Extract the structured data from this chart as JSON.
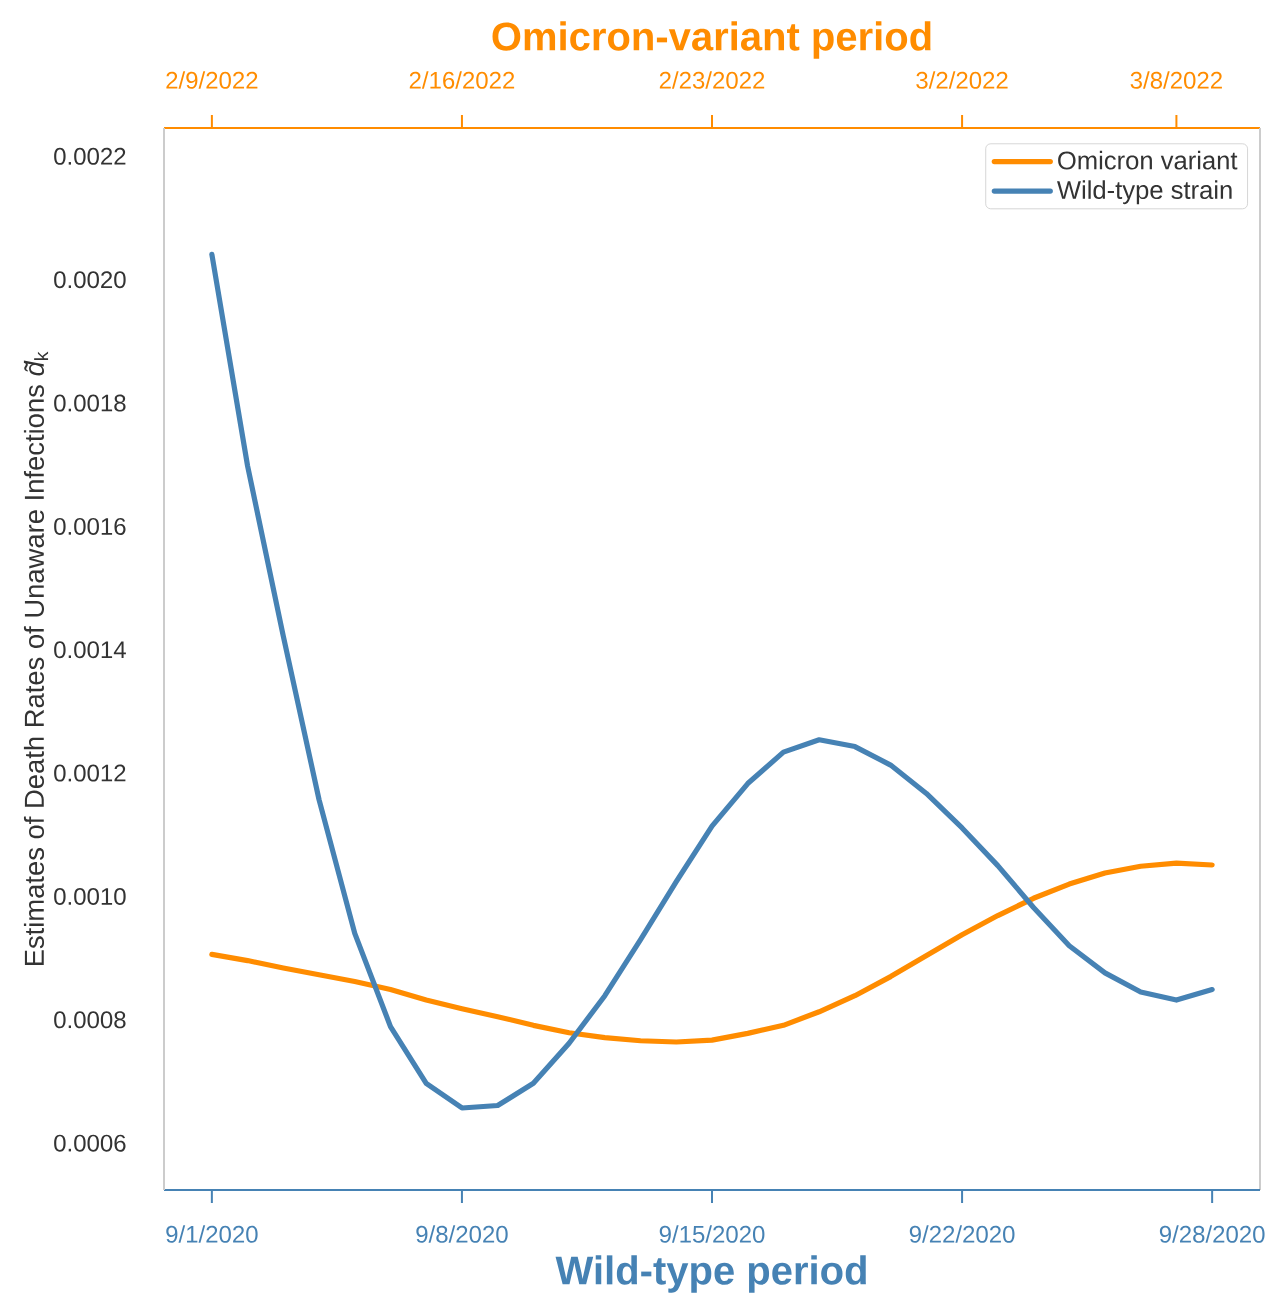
{
  "chart_data": {
    "type": "line",
    "x2label": "Omicron-variant period",
    "xlabel": "Wild-type period",
    "ylabel": "Estimates of Death Rates of Unaware Infections *d̃*$_{k}$",
    "categories": [
      "9/1/2020",
      null,
      null,
      null,
      null,
      null,
      null,
      "9/8/2020",
      null,
      null,
      null,
      null,
      null,
      null,
      "9/15/2020",
      null,
      null,
      null,
      null,
      null,
      null,
      "9/22/2020",
      null,
      null,
      null,
      null,
      null,
      null,
      "9/28/2020"
    ],
    "x2lim": [
      "2022-02-07T15:50",
      "2022-03-10T08:10"
    ],
    "x2ticks": [
      {
        "value": "2022-02-09",
        "label": "2/9/2022"
      },
      {
        "value": "2022-02-16",
        "label": "2/16/2022"
      },
      {
        "value": "2022-02-23",
        "label": "2/23/2022"
      },
      {
        "value": "2022-03-02",
        "label": "3/2/2022"
      },
      {
        "value": "2022-03-08",
        "label": "3/8/2022"
      }
    ],
    "ylim": [
      0.000524,
      0.002246
    ],
    "yticks": [
      0.0006,
      0.0008,
      {
        "value": 0.001,
        "label": "0.0010"
      },
      0.0012,
      0.0014,
      0.0016,
      0.0018,
      {
        "value": 0.002,
        "label": "0.0020"
      },
      0.0022
    ],
    "legend": "top right",
    "series": [
      {
        "name": "Omicron variant",
        "color": "#ff8c00",
        "values": [
          0.000906,
          0.000896,
          0.000884,
          0.000873,
          0.000862,
          0.000849,
          0.000832,
          0.000818,
          0.000805,
          0.000791,
          0.000779,
          0.000771,
          0.000766,
          0.000764,
          0.000767,
          0.000778,
          0.000791,
          0.000813,
          0.000839,
          0.00087,
          0.000904,
          0.000938,
          0.000969,
          0.000997,
          0.00102,
          0.001038,
          0.001049,
          0.001054,
          0.001051
        ]
      },
      {
        "name": "Wild-type strain",
        "color": "#4682b4",
        "values": [
          0.002041,
          0.001698,
          0.001422,
          0.001157,
          0.00094,
          0.000789,
          0.000697,
          0.000657,
          0.000661,
          0.000697,
          0.000762,
          0.000839,
          0.00093,
          0.001024,
          0.001114,
          0.001183,
          0.001234,
          0.001254,
          0.001243,
          0.001213,
          0.001167,
          0.001111,
          0.00105,
          0.000982,
          0.00092,
          0.000876,
          0.000845,
          0.000832,
          0.000849
        ]
      }
    ]
  }
}
